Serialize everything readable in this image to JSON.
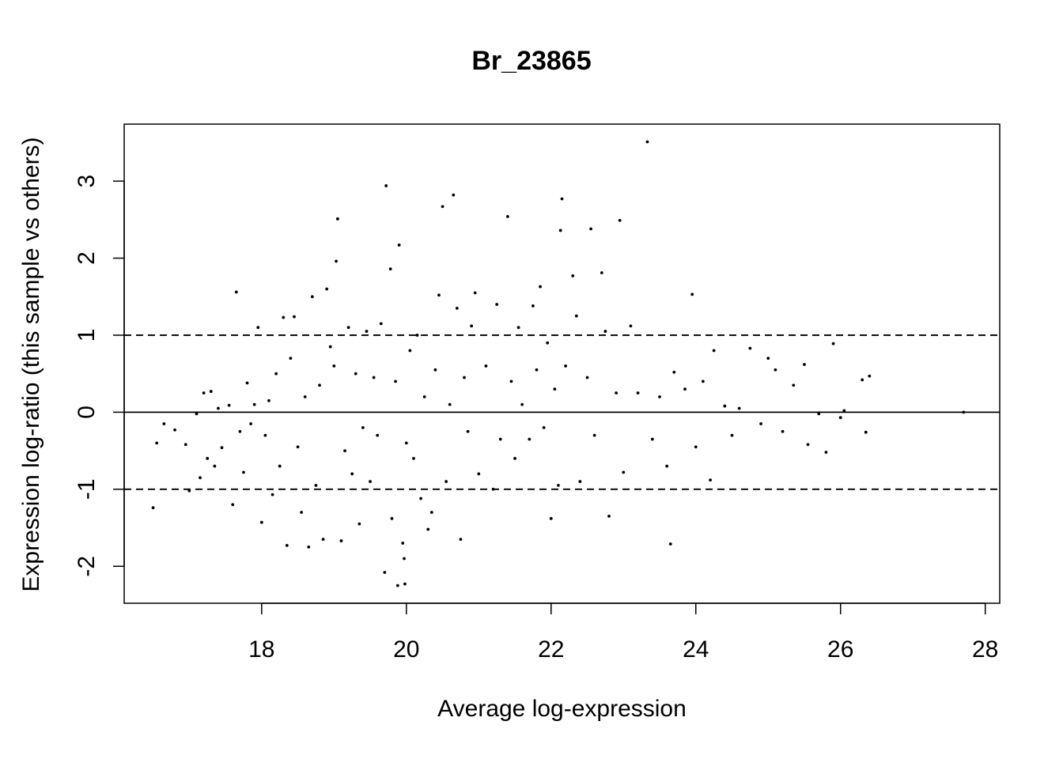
{
  "chart_data": {
    "type": "scatter",
    "title": "Br_23865",
    "xlabel": "Average log-expression",
    "ylabel": "Expression log-ratio (this sample vs others)",
    "xlim": [
      16.1,
      28.2
    ],
    "ylim": [
      -2.48,
      3.74
    ],
    "x_ticks": [
      18,
      20,
      22,
      24,
      26,
      28
    ],
    "y_ticks": [
      -2,
      -1,
      0,
      1,
      2,
      3
    ],
    "x_tick_labels": [
      "18",
      "20",
      "22",
      "24",
      "26",
      "28"
    ],
    "y_tick_labels": [
      "-2",
      "-1",
      "0",
      "1",
      "2",
      "3"
    ],
    "reference_lines": [
      {
        "y": 0,
        "style": "solid"
      },
      {
        "y": 1,
        "style": "dashed"
      },
      {
        "y": -1,
        "style": "dashed"
      }
    ],
    "grid": false,
    "legend": "none",
    "point_color": "#000000",
    "points": [
      [
        16.5,
        -1.24
      ],
      [
        16.55,
        -0.4
      ],
      [
        16.65,
        -0.15
      ],
      [
        16.8,
        -0.23
      ],
      [
        16.95,
        -0.42
      ],
      [
        17.0,
        -1.02
      ],
      [
        17.1,
        -0.02
      ],
      [
        17.15,
        -0.85
      ],
      [
        17.2,
        0.25
      ],
      [
        17.25,
        -0.6
      ],
      [
        17.3,
        0.27
      ],
      [
        17.35,
        -0.7
      ],
      [
        17.4,
        0.05
      ],
      [
        17.45,
        -0.46
      ],
      [
        17.55,
        0.09
      ],
      [
        17.6,
        -1.2
      ],
      [
        17.65,
        1.56
      ],
      [
        17.7,
        -0.25
      ],
      [
        17.75,
        -0.78
      ],
      [
        17.8,
        0.38
      ],
      [
        17.85,
        -0.15
      ],
      [
        17.9,
        0.1
      ],
      [
        17.95,
        1.1
      ],
      [
        18.0,
        -1.43
      ],
      [
        18.05,
        -0.3
      ],
      [
        18.1,
        0.15
      ],
      [
        18.15,
        -1.07
      ],
      [
        18.2,
        0.5
      ],
      [
        18.25,
        -0.7
      ],
      [
        18.3,
        1.23
      ],
      [
        18.35,
        -1.73
      ],
      [
        18.4,
        0.7
      ],
      [
        18.45,
        1.24
      ],
      [
        18.5,
        -0.45
      ],
      [
        18.55,
        -1.3
      ],
      [
        18.6,
        0.2
      ],
      [
        18.65,
        -1.75
      ],
      [
        18.7,
        1.5
      ],
      [
        18.75,
        -0.95
      ],
      [
        18.8,
        0.35
      ],
      [
        18.85,
        -1.65
      ],
      [
        18.9,
        1.6
      ],
      [
        18.95,
        0.85
      ],
      [
        19.0,
        0.6
      ],
      [
        19.05,
        2.51
      ],
      [
        19.03,
        1.96
      ],
      [
        19.1,
        -1.67
      ],
      [
        19.15,
        -0.5
      ],
      [
        19.2,
        1.1
      ],
      [
        19.25,
        -0.8
      ],
      [
        19.3,
        0.5
      ],
      [
        19.35,
        -1.45
      ],
      [
        19.4,
        -0.2
      ],
      [
        19.45,
        1.05
      ],
      [
        19.5,
        -0.9
      ],
      [
        19.55,
        0.45
      ],
      [
        19.6,
        -0.3
      ],
      [
        19.65,
        1.15
      ],
      [
        19.7,
        -2.08
      ],
      [
        19.72,
        2.94
      ],
      [
        19.78,
        1.86
      ],
      [
        19.8,
        -1.38
      ],
      [
        19.85,
        0.4
      ],
      [
        19.88,
        -2.25
      ],
      [
        19.9,
        2.17
      ],
      [
        19.95,
        -1.7
      ],
      [
        19.98,
        -2.23
      ],
      [
        19.97,
        -1.9
      ],
      [
        20.0,
        -0.4
      ],
      [
        20.05,
        0.8
      ],
      [
        20.1,
        -0.6
      ],
      [
        20.15,
        1.0
      ],
      [
        20.2,
        -1.12
      ],
      [
        20.25,
        0.2
      ],
      [
        20.3,
        -1.52
      ],
      [
        20.35,
        -1.3
      ],
      [
        20.4,
        0.55
      ],
      [
        20.45,
        1.52
      ],
      [
        20.5,
        2.67
      ],
      [
        20.55,
        -0.9
      ],
      [
        20.6,
        0.1
      ],
      [
        20.65,
        2.82
      ],
      [
        20.7,
        1.35
      ],
      [
        20.75,
        -1.65
      ],
      [
        20.8,
        0.45
      ],
      [
        20.85,
        -0.25
      ],
      [
        20.9,
        1.12
      ],
      [
        20.95,
        1.55
      ],
      [
        21.0,
        -0.8
      ],
      [
        21.1,
        0.6
      ],
      [
        21.2,
        -1.0
      ],
      [
        21.25,
        1.4
      ],
      [
        21.3,
        -0.35
      ],
      [
        21.4,
        2.54
      ],
      [
        21.45,
        0.4
      ],
      [
        21.5,
        -0.6
      ],
      [
        21.55,
        1.1
      ],
      [
        21.6,
        0.1
      ],
      [
        21.7,
        -0.35
      ],
      [
        21.75,
        1.38
      ],
      [
        21.8,
        0.55
      ],
      [
        21.85,
        1.63
      ],
      [
        21.9,
        -0.2
      ],
      [
        21.95,
        0.9
      ],
      [
        22.0,
        -1.38
      ],
      [
        22.05,
        0.3
      ],
      [
        22.1,
        -0.95
      ],
      [
        22.15,
        2.77
      ],
      [
        22.13,
        2.36
      ],
      [
        22.2,
        0.6
      ],
      [
        22.3,
        1.77
      ],
      [
        22.35,
        1.25
      ],
      [
        22.4,
        -0.9
      ],
      [
        22.5,
        0.45
      ],
      [
        22.55,
        2.38
      ],
      [
        22.6,
        -0.3
      ],
      [
        22.7,
        1.81
      ],
      [
        22.75,
        1.05
      ],
      [
        22.8,
        -1.35
      ],
      [
        22.9,
        0.25
      ],
      [
        22.95,
        2.49
      ],
      [
        23.0,
        -0.78
      ],
      [
        23.1,
        1.12
      ],
      [
        23.2,
        0.25
      ],
      [
        23.33,
        3.51
      ],
      [
        23.4,
        -0.35
      ],
      [
        23.5,
        0.2
      ],
      [
        23.6,
        -0.7
      ],
      [
        23.65,
        -1.71
      ],
      [
        23.7,
        0.52
      ],
      [
        23.85,
        0.3
      ],
      [
        23.95,
        1.53
      ],
      [
        24.0,
        -0.45
      ],
      [
        24.1,
        0.4
      ],
      [
        24.2,
        -0.88
      ],
      [
        24.25,
        0.8
      ],
      [
        24.4,
        0.08
      ],
      [
        24.5,
        -0.3
      ],
      [
        24.6,
        0.05
      ],
      [
        24.75,
        0.83
      ],
      [
        24.9,
        -0.15
      ],
      [
        25.0,
        0.7
      ],
      [
        25.1,
        0.55
      ],
      [
        25.2,
        -0.25
      ],
      [
        25.35,
        0.35
      ],
      [
        25.5,
        0.62
      ],
      [
        25.55,
        -0.42
      ],
      [
        25.7,
        -0.02
      ],
      [
        25.8,
        -0.52
      ],
      [
        25.9,
        0.89
      ],
      [
        26.0,
        -0.07
      ],
      [
        26.05,
        0.02
      ],
      [
        26.3,
        0.42
      ],
      [
        26.35,
        -0.26
      ],
      [
        26.4,
        0.47
      ],
      [
        27.7,
        0.0
      ]
    ]
  }
}
